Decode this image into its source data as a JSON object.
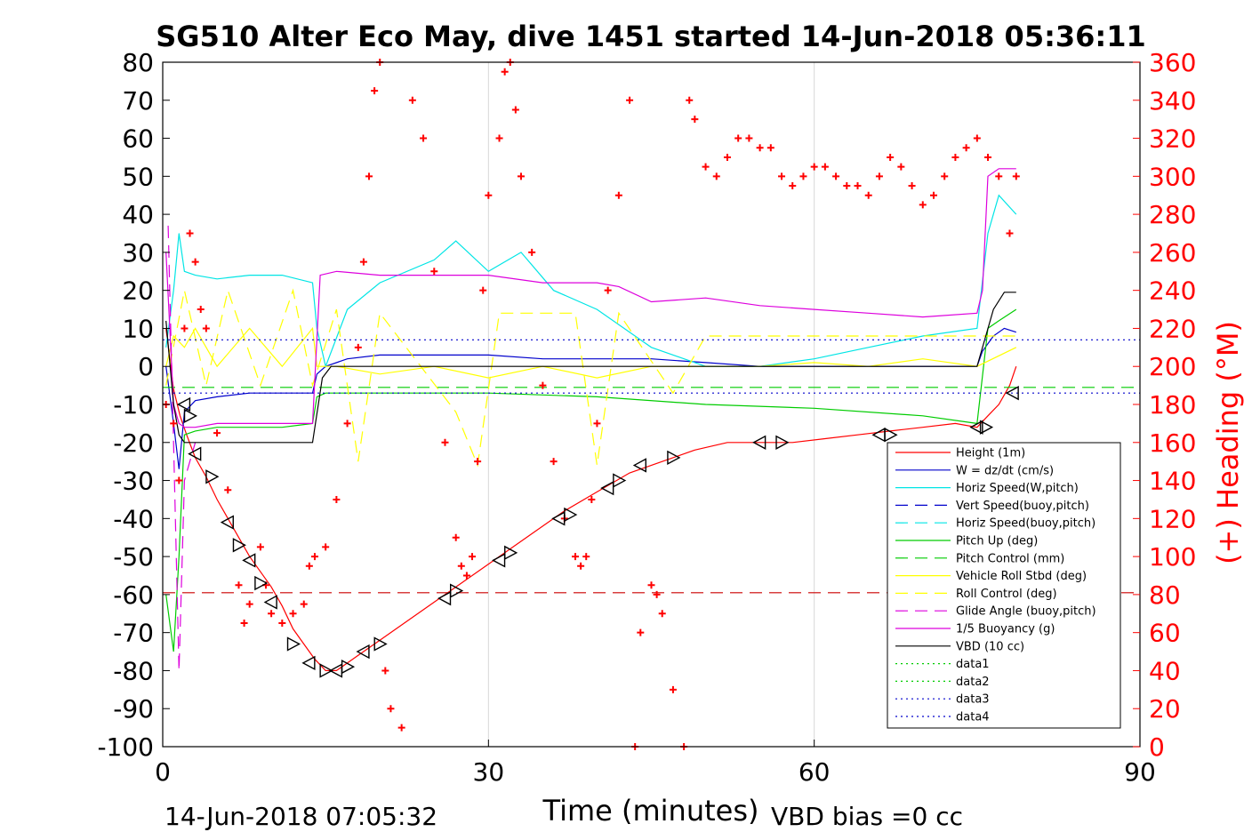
{
  "chart_data": {
    "type": "line",
    "title": "SG510 Alter Eco May, dive 1451 started 14-Jun-2018 05:36:11",
    "xlabel": "Time (minutes)",
    "ylabel": "",
    "y2label": "(+) Heading (°M)",
    "xlim": [
      0,
      90
    ],
    "ylim": [
      -100,
      80
    ],
    "y2lim": [
      0,
      360
    ],
    "xticks": [
      "0",
      "30",
      "60",
      "90"
    ],
    "xtick_values": [
      0,
      30,
      60,
      90
    ],
    "yticks": [
      "80",
      "70",
      "60",
      "50",
      "40",
      "30",
      "20",
      "10",
      "0",
      "-10",
      "-20",
      "-30",
      "-40",
      "-50",
      "-60",
      "-70",
      "-80",
      "-90",
      "-100"
    ],
    "ytick_values": [
      80,
      70,
      60,
      50,
      40,
      30,
      20,
      10,
      0,
      -10,
      -20,
      -30,
      -40,
      -50,
      -60,
      -70,
      -80,
      -90,
      -100
    ],
    "y2ticks": [
      "360",
      "340",
      "320",
      "300",
      "280",
      "260",
      "240",
      "220",
      "200",
      "180",
      "160",
      "140",
      "120",
      "100",
      "80",
      "60",
      "40",
      "20",
      "0"
    ],
    "y2tick_values": [
      360,
      340,
      320,
      300,
      280,
      260,
      240,
      220,
      200,
      180,
      160,
      140,
      120,
      100,
      80,
      60,
      40,
      20,
      0
    ],
    "grid": "x-only",
    "legend_position": "lower-right",
    "footer_left": "14-Jun-2018 07:05:32",
    "footer_right": "VBD bias =0 cc",
    "legend": [
      {
        "label": "Height (1m)",
        "color": "#ff0000",
        "dash": "solid"
      },
      {
        "label": "W = dz/dt (cm/s)",
        "color": "#0000cc",
        "dash": "solid"
      },
      {
        "label": "Horiz Speed(W,pitch)",
        "color": "#00e5e5",
        "dash": "solid"
      },
      {
        "label": "Vert Speed(buoy,pitch)",
        "color": "#0000cc",
        "dash": "dashed"
      },
      {
        "label": "Horiz Speed(buoy,pitch)",
        "color": "#00e5e5",
        "dash": "dashed"
      },
      {
        "label": "Pitch Up (deg)",
        "color": "#00cc00",
        "dash": "solid"
      },
      {
        "label": "Pitch Control (mm)",
        "color": "#00cc00",
        "dash": "dashed"
      },
      {
        "label": "Vehicle Roll Stbd (deg)",
        "color": "#ffff00",
        "dash": "solid"
      },
      {
        "label": "Roll Control (deg)",
        "color": "#ffff00",
        "dash": "dashed"
      },
      {
        "label": "Glide Angle (buoy,pitch)",
        "color": "#dd00dd",
        "dash": "dashed"
      },
      {
        "label": "1/5 Buoyancy (g)",
        "color": "#dd00dd",
        "dash": "solid"
      },
      {
        "label": "VBD (10 cc)",
        "color": "#000000",
        "dash": "solid"
      },
      {
        "label": "data1",
        "color": "#00cc00",
        "dash": "dotted"
      },
      {
        "label": "data2",
        "color": "#00cc00",
        "dash": "dotted"
      },
      {
        "label": "data3",
        "color": "#0000cc",
        "dash": "dotted"
      },
      {
        "label": "data4",
        "color": "#0000cc",
        "dash": "dotted"
      }
    ],
    "series": [
      {
        "name": "Height (1m)",
        "color": "#ff0000",
        "x": [
          0.3,
          1,
          1.6,
          2.2,
          3,
          4,
          5,
          6,
          7,
          8,
          9,
          10,
          11,
          12,
          13,
          14,
          15,
          16,
          17,
          18,
          20,
          22,
          25,
          28,
          31,
          34,
          37,
          40,
          43,
          46,
          49,
          52,
          55,
          58,
          61,
          64,
          67,
          70,
          73,
          75,
          76,
          77,
          78,
          78.6
        ],
        "y": [
          10,
          -6,
          -13,
          -18,
          -24,
          -29,
          -35,
          -40,
          -45,
          -50,
          -54,
          -58,
          -63,
          -69,
          -73,
          -77,
          -80,
          -80,
          -78,
          -76,
          -72,
          -68,
          -62,
          -56,
          -50,
          -44,
          -38,
          -33,
          -28,
          -25,
          -22,
          -20,
          -20,
          -20,
          -19,
          -18,
          -17,
          -16,
          -15,
          -16,
          -13,
          -10,
          -5,
          0
        ]
      },
      {
        "name": "W = dz/dt (cm/s)",
        "color": "#0000cc",
        "x": [
          0.3,
          1,
          1.5,
          2,
          3,
          5,
          8,
          11,
          13.8,
          14.2,
          15,
          17,
          20,
          25,
          30,
          35,
          40,
          45,
          50,
          55,
          60,
          65,
          70,
          75,
          75.5,
          76.5,
          77.5,
          78.6
        ],
        "y": [
          0,
          -15,
          -27,
          -12,
          -9,
          -8,
          -7,
          -7,
          -7,
          -2,
          0,
          2,
          3,
          3,
          3,
          2,
          2,
          2,
          1,
          0,
          0,
          0,
          0,
          0,
          4,
          8,
          10,
          9
        ]
      },
      {
        "name": "Horiz Speed(W,pitch)",
        "color": "#00e5e5",
        "x": [
          0.3,
          1,
          1.5,
          2,
          3,
          5,
          8,
          11,
          13.8,
          14.2,
          15,
          17,
          20,
          25,
          27,
          30,
          33,
          36,
          40,
          45,
          50,
          55,
          60,
          65,
          70,
          75,
          76,
          77,
          78.6
        ],
        "y": [
          5,
          20,
          35,
          25,
          24,
          23,
          24,
          24,
          22,
          10,
          0,
          15,
          22,
          28,
          33,
          25,
          30,
          20,
          15,
          5,
          0,
          0,
          2,
          5,
          8,
          10,
          35,
          45,
          40
        ]
      },
      {
        "name": "Pitch Up (deg)",
        "color": "#00cc00",
        "x": [
          0.3,
          1,
          1.5,
          2,
          3,
          5,
          8,
          11,
          13.8,
          14.2,
          15,
          20,
          30,
          40,
          50,
          60,
          70,
          75,
          76,
          77,
          78.6
        ],
        "y": [
          -60,
          -75,
          -50,
          -18,
          -17,
          -16,
          -16,
          -16,
          -15,
          -8,
          -7,
          -7,
          -7,
          -8,
          -10,
          -11,
          -13,
          -15,
          10,
          12,
          15
        ]
      },
      {
        "name": "Pitch Control (mm)",
        "color": "#00cc00",
        "x": [
          0,
          90
        ],
        "y": [
          -5.5,
          -5.5
        ]
      },
      {
        "name": "Vehicle Roll Stbd (deg)",
        "color": "#ffff00",
        "x": [
          0.3,
          1,
          2,
          3,
          5,
          8,
          11,
          13.8,
          14.2,
          16,
          20,
          25,
          30,
          35,
          40,
          45,
          50,
          55,
          60,
          65,
          70,
          75,
          78.6
        ],
        "y": [
          0,
          8,
          5,
          10,
          0,
          10,
          0,
          10,
          0,
          0,
          -2,
          0,
          -3,
          0,
          -3,
          0,
          0,
          0,
          1,
          0,
          2,
          0,
          5
        ]
      },
      {
        "name": "Roll Control (deg)",
        "color": "#ffff00",
        "x": [
          0.3,
          2,
          4,
          6,
          9,
          12,
          13.8,
          16,
          18,
          20,
          27,
          29,
          31,
          38,
          40,
          42,
          47,
          50,
          55,
          60,
          65,
          70,
          78.6
        ],
        "y": [
          -5,
          20,
          -5,
          20,
          -5,
          20,
          -5,
          15,
          -25,
          14,
          -12,
          -26,
          14,
          14,
          -26,
          14,
          -7,
          8,
          8,
          8,
          8,
          8,
          8
        ]
      },
      {
        "name": "Glide Angle (buoy,pitch)",
        "color": "#dd00dd",
        "x": [
          0.5,
          1,
          1.5,
          2,
          2.5,
          3
        ],
        "y": [
          37,
          -20,
          -80,
          -30,
          -25,
          -20
        ]
      },
      {
        "name": "1/5 Buoyancy (g)",
        "color": "#dd00dd",
        "x": [
          0.3,
          1,
          1.5,
          2,
          3,
          5,
          8,
          11,
          13.8,
          14.5,
          16,
          20,
          25,
          30,
          35,
          40,
          42,
          45,
          50,
          55,
          60,
          65,
          70,
          75,
          75.5,
          76,
          77,
          78.6
        ],
        "y": [
          30,
          -10,
          -15,
          -16,
          -16,
          -15,
          -15,
          -15,
          -15,
          24,
          25,
          24,
          24,
          24,
          22,
          22,
          21,
          17,
          18,
          16,
          15,
          14,
          13,
          14,
          20,
          50,
          52,
          52
        ]
      },
      {
        "name": "VBD (10 cc)",
        "color": "#000000",
        "x": [
          0.3,
          1,
          1.5,
          2,
          3,
          13.8,
          14.7,
          15.5,
          30,
          60,
          75,
          76.5,
          77.5,
          78.6
        ],
        "y": [
          12,
          -10,
          -18,
          -20,
          -20,
          -20,
          -3,
          0,
          0,
          0,
          0,
          15,
          19.5,
          19.5
        ]
      },
      {
        "name": "data3",
        "color": "#0000cc",
        "x": [
          0,
          90
        ],
        "y": [
          7,
          7
        ]
      },
      {
        "name": "data4",
        "color": "#0000cc",
        "x": [
          0,
          90
        ],
        "y": [
          -7,
          -7
        ]
      },
      {
        "name": "",
        "color": "#cc0000",
        "x": [
          0,
          90
        ],
        "y": [
          -59.5,
          -59.5
        ]
      }
    ],
    "heading": {
      "color": "#ff0000",
      "x": [
        0.3,
        1,
        1.5,
        2,
        2.5,
        3,
        3.5,
        4,
        5,
        6,
        7,
        7.5,
        8,
        9,
        9.5,
        10,
        11,
        12,
        13,
        13.5,
        14,
        15,
        16,
        17,
        18,
        18.5,
        19,
        19.5,
        20,
        20.5,
        21,
        22,
        23,
        24,
        25,
        26,
        27,
        27.5,
        28,
        28.5,
        29,
        29.5,
        30,
        31,
        31.5,
        32,
        32.5,
        33,
        34,
        35,
        36,
        37,
        38,
        38.5,
        39,
        39.5,
        40,
        41,
        42,
        43,
        43.5,
        44,
        45,
        45.5,
        46,
        47,
        48,
        48.5,
        49,
        50,
        51,
        52,
        53,
        54,
        55,
        56,
        57,
        58,
        59,
        60,
        61,
        62,
        63,
        64,
        65,
        66,
        67,
        68,
        69,
        70,
        71,
        72,
        73,
        74,
        75,
        76,
        77,
        78,
        78.6
      ],
      "y": [
        180,
        170,
        140,
        220,
        270,
        255,
        230,
        220,
        165,
        135,
        85,
        65,
        75,
        105,
        85,
        70,
        65,
        70,
        75,
        95,
        100,
        105,
        130,
        170,
        210,
        255,
        300,
        345,
        360,
        40,
        20,
        10,
        340,
        320,
        250,
        160,
        110,
        95,
        90,
        100,
        150,
        240,
        290,
        320,
        355,
        360,
        335,
        300,
        260,
        190,
        150,
        120,
        100,
        95,
        100,
        130,
        170,
        240,
        290,
        340,
        0,
        60,
        85,
        80,
        70,
        30,
        0,
        340,
        330,
        305,
        300,
        310,
        320,
        320,
        315,
        315,
        300,
        295,
        300,
        305,
        305,
        300,
        295,
        295,
        290,
        300,
        310,
        305,
        295,
        285,
        290,
        300,
        310,
        315,
        320,
        310,
        300,
        270,
        300
      ]
    },
    "markers": {
      "color": "#000000",
      "x": [
        2,
        2.5,
        3,
        4.5,
        6,
        7,
        8,
        9,
        10,
        12,
        13.5,
        15,
        16,
        17,
        18.5,
        20,
        26,
        27,
        31,
        32,
        36.5,
        37.5,
        41,
        42,
        44,
        47,
        55,
        57,
        66,
        67,
        75,
        75.8,
        78.3
      ],
      "y": [
        -10,
        -13,
        -23,
        -29,
        -41,
        -47,
        -51,
        -57,
        -62,
        -73,
        -78,
        -80,
        -80,
        -79,
        -75,
        -73,
        -61,
        -59,
        -51,
        -49,
        -40,
        -39,
        -32,
        -30,
        -26,
        -24,
        -20,
        -20,
        -18,
        -18,
        -16,
        -16,
        -7
      ]
    }
  }
}
